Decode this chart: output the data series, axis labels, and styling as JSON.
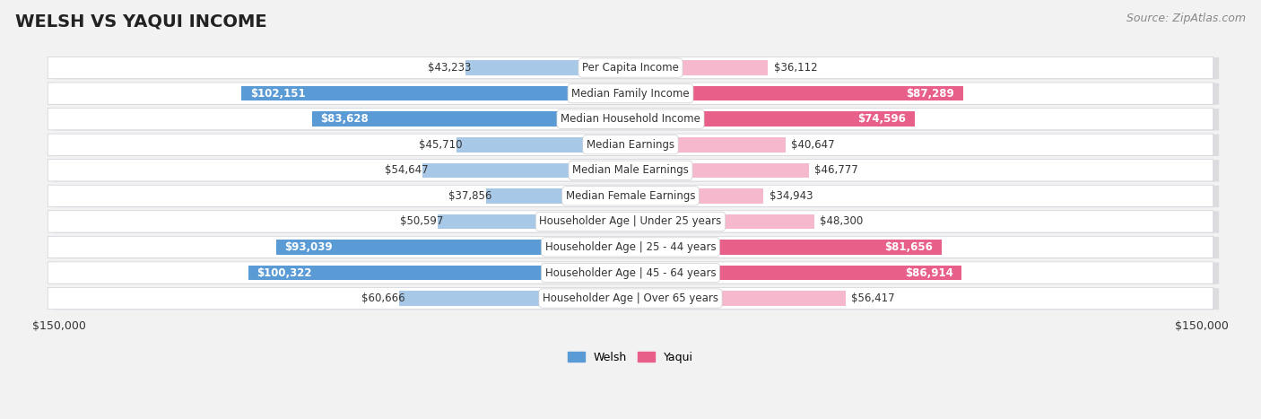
{
  "title": "Welsh vs Yaqui Income",
  "source": "Source: ZipAtlas.com",
  "categories": [
    "Per Capita Income",
    "Median Family Income",
    "Median Household Income",
    "Median Earnings",
    "Median Male Earnings",
    "Median Female Earnings",
    "Householder Age | Under 25 years",
    "Householder Age | 25 - 44 years",
    "Householder Age | 45 - 64 years",
    "Householder Age | Over 65 years"
  ],
  "welsh_values": [
    43233,
    102151,
    83628,
    45710,
    54647,
    37856,
    50597,
    93039,
    100322,
    60666
  ],
  "yaqui_values": [
    36112,
    87289,
    74596,
    40647,
    46777,
    34943,
    48300,
    81656,
    86914,
    56417
  ],
  "welsh_labels": [
    "$43,233",
    "$102,151",
    "$83,628",
    "$45,710",
    "$54,647",
    "$37,856",
    "$50,597",
    "$93,039",
    "$100,322",
    "$60,666"
  ],
  "yaqui_labels": [
    "$36,112",
    "$87,289",
    "$74,596",
    "$40,647",
    "$46,777",
    "$34,943",
    "$48,300",
    "$81,656",
    "$86,914",
    "$56,417"
  ],
  "welsh_color_light": "#a8c8e8",
  "welsh_color_dark": "#5b9bd5",
  "yaqui_color_light": "#f5b8cc",
  "yaqui_color_dark": "#e8608a",
  "welsh_dark_flags": [
    false,
    true,
    true,
    false,
    false,
    false,
    false,
    true,
    true,
    false
  ],
  "yaqui_dark_flags": [
    false,
    true,
    true,
    false,
    false,
    false,
    false,
    true,
    true,
    false
  ],
  "max_value": 150000,
  "background_color": "#f2f2f2",
  "row_bg_color": "#ffffff",
  "row_border_color": "#d0d0d8",
  "legend_welsh": "Welsh",
  "legend_yaqui": "Yaqui",
  "title_fontsize": 14,
  "source_fontsize": 9,
  "label_fontsize": 8.5,
  "category_fontsize": 8.5,
  "axis_fontsize": 9
}
